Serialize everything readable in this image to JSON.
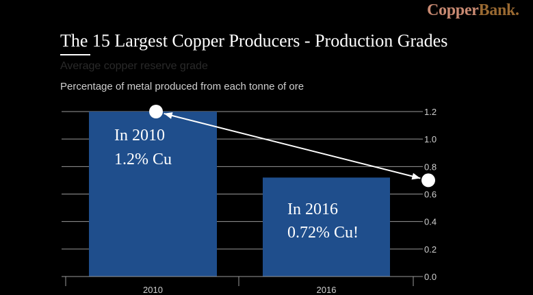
{
  "brand": {
    "part1": "Copper",
    "part2": "Bank."
  },
  "colors": {
    "background": "#000000",
    "bar": "#1f4e8c",
    "grid": "#9a9a9a",
    "text": "#ffffff",
    "brand_copper": "#c98a72",
    "brand_bank": "#9a6a32"
  },
  "chart_data": {
    "type": "bar",
    "title": "The 15 Largest Copper Producers - Production Grades",
    "subtitle": "Average copper reserve grade",
    "caption": "Percentage of metal produced from each tonne of ore",
    "categories": [
      "2010",
      "2016"
    ],
    "values": [
      1.2,
      0.72
    ],
    "ylim": [
      0,
      1.2
    ],
    "yticks": [
      "0.0",
      "0.2",
      "0.4",
      "0.6",
      "0.8",
      "1.0",
      "1.2"
    ],
    "grid": true,
    "y_axis_side": "right",
    "annotations": [
      {
        "line1": "In 2010",
        "line2": "1.2% Cu"
      },
      {
        "line1": "In 2016",
        "line2": "0.72% Cu!"
      }
    ],
    "arrow": {
      "from": 1.2,
      "to": 0.7
    }
  }
}
